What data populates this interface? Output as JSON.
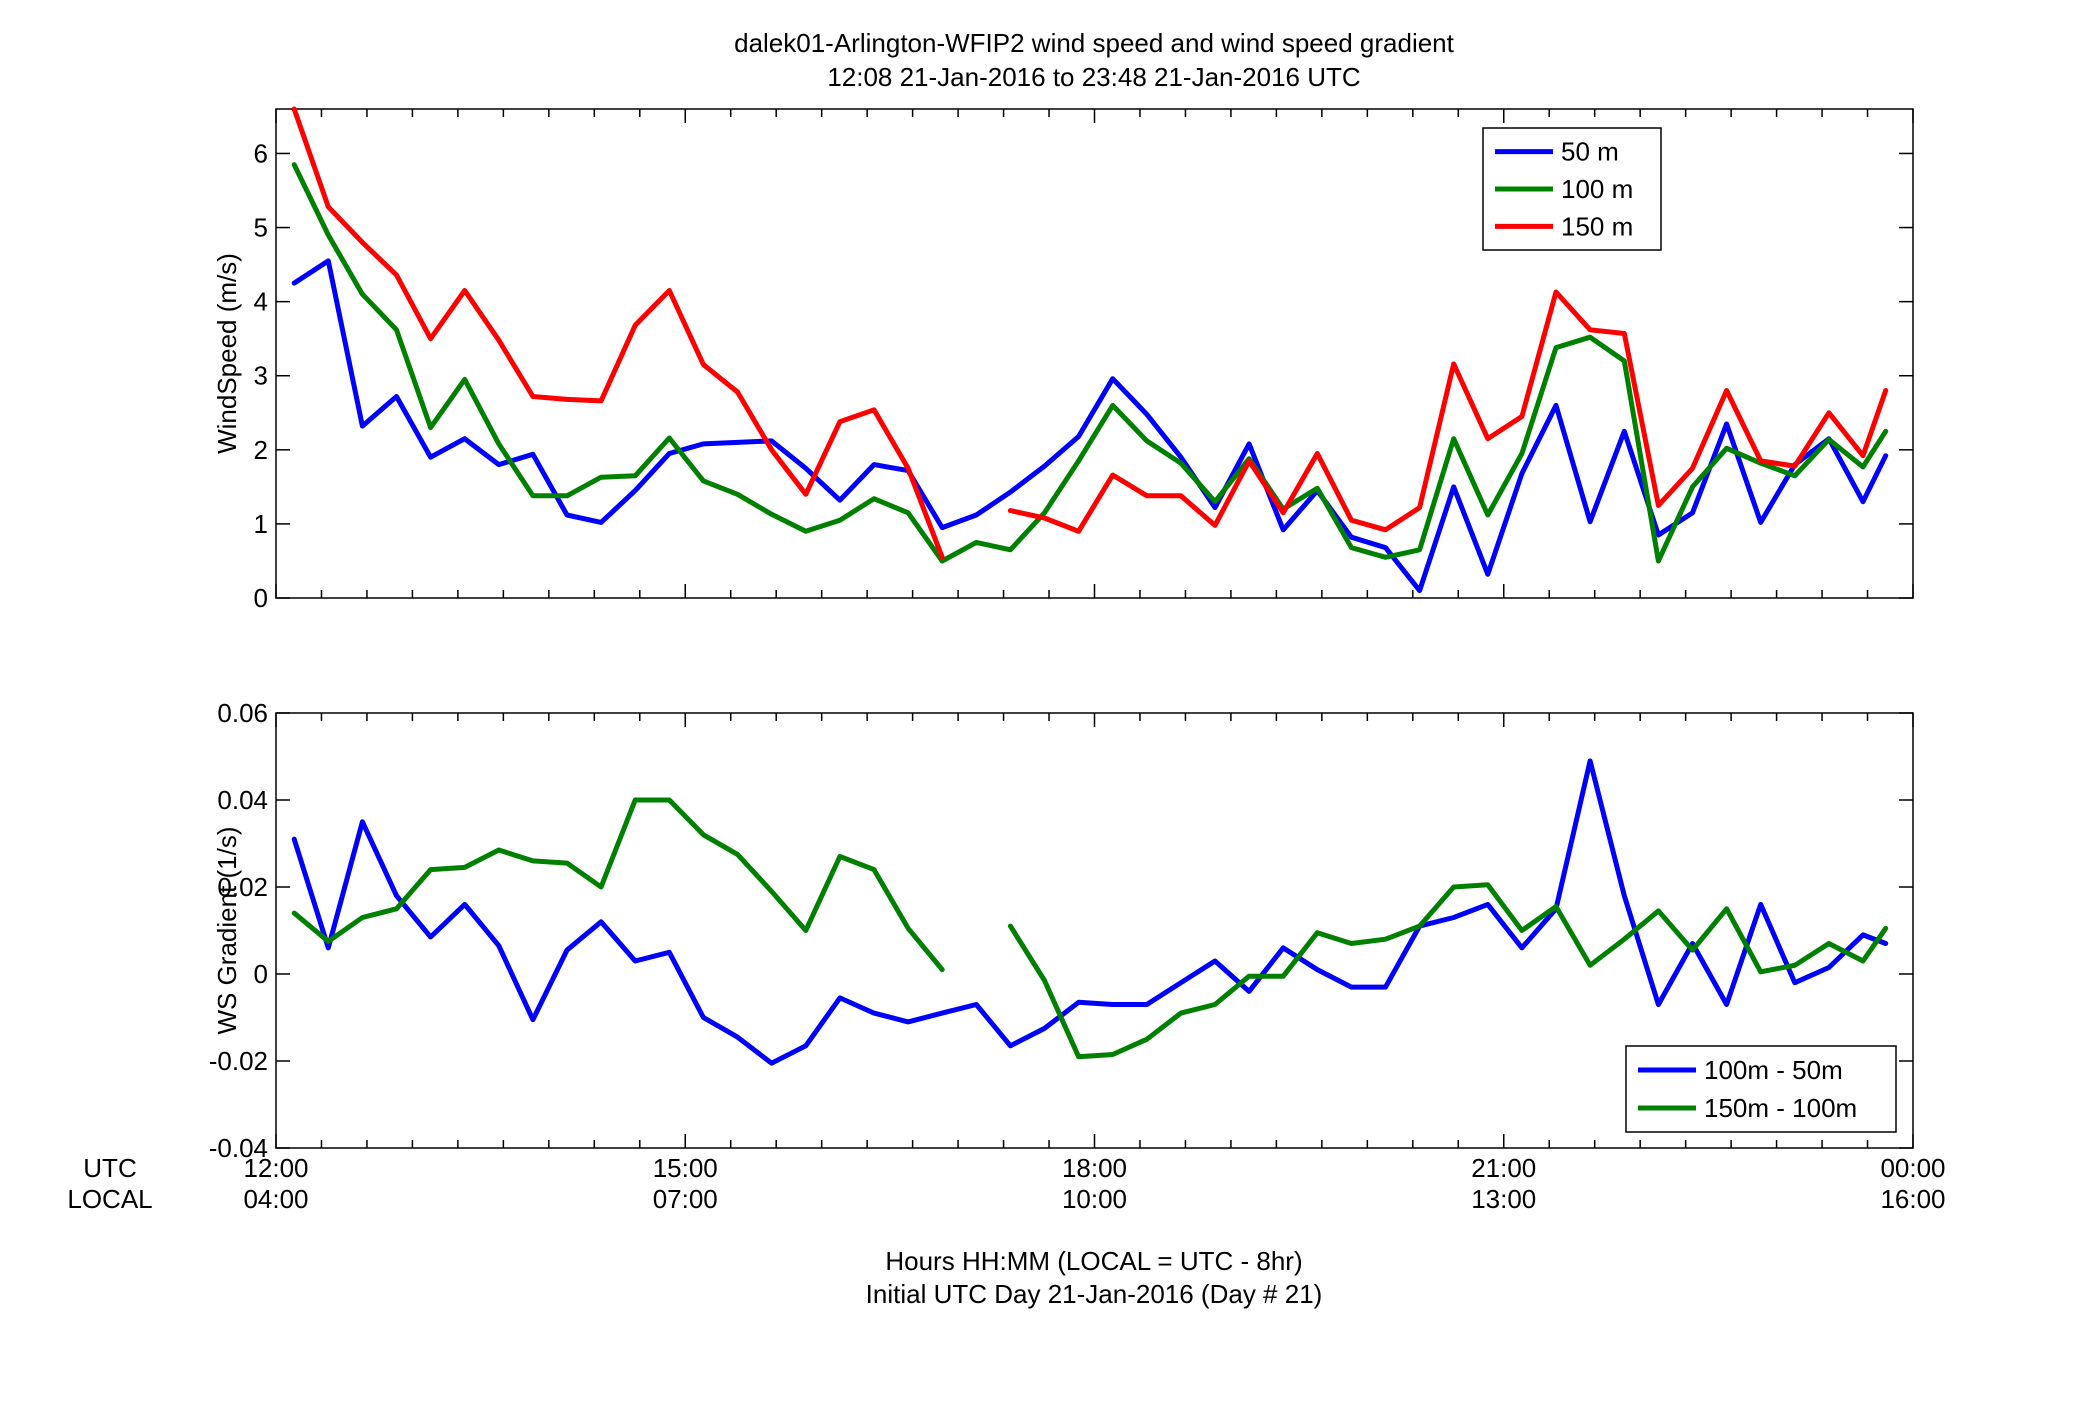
{
  "title": "dalek01-Arlington-WFIP2  wind speed and wind speed gradient",
  "subtitle": "12:08 21-Jan-2016 to 23:48 21-Jan-2016  UTC",
  "colors": {
    "blue": "#0000ff",
    "green": "#008000",
    "red": "#ff0000"
  },
  "axis_labels": {
    "utc": "UTC",
    "local": "LOCAL",
    "xlabel_line1": "Hours HH:MM  (LOCAL = UTC - 8hr)",
    "xlabel_line2": "Initial UTC Day 21-Jan-2016 (Day # 21)"
  },
  "chart_data": [
    {
      "type": "line",
      "ylabel": "WindSpeed (m/s)",
      "xlim": [
        12,
        24
      ],
      "ylim": [
        0,
        6.6
      ],
      "yticks": [
        0,
        1,
        2,
        3,
        4,
        5,
        6
      ],
      "ytick_labels": [
        "0",
        "1",
        "2",
        "3",
        "4",
        "5",
        "6"
      ],
      "x_ticks": [
        12,
        15,
        18,
        21,
        24
      ],
      "utc_tick_labels": [
        "12:00",
        "15:00",
        "18:00",
        "21:00",
        "00:00"
      ],
      "local_tick_labels": [
        "04:00",
        "07:00",
        "10:00",
        "13:00",
        "16:00"
      ],
      "legend": "top-right",
      "x": [
        "12:08",
        "12:23",
        "12:38",
        "12:53",
        "13:08",
        "13:23",
        "13:38",
        "13:53",
        "14:08",
        "14:23",
        "14:38",
        "14:53",
        "15:08",
        "15:23",
        "15:38",
        "15:53",
        "16:08",
        "16:23",
        "16:38",
        "16:53",
        "17:08",
        "17:23",
        "17:38",
        "17:53",
        "18:08",
        "18:23",
        "18:38",
        "18:53",
        "19:08",
        "19:23",
        "19:38",
        "19:53",
        "20:08",
        "20:23",
        "20:38",
        "20:53",
        "21:08",
        "21:23",
        "21:38",
        "21:53",
        "22:08",
        "22:23",
        "22:38",
        "22:53",
        "23:08",
        "23:23",
        "23:38",
        "23:48"
      ],
      "series": [
        {
          "name": "50 m",
          "color": "#0000ff",
          "values": [
            4.25,
            4.55,
            2.32,
            2.72,
            1.9,
            2.15,
            1.8,
            1.94,
            1.12,
            1.02,
            1.45,
            1.95,
            2.08,
            2.1,
            2.12,
            1.75,
            1.32,
            1.8,
            1.72,
            0.95,
            1.12,
            1.43,
            1.78,
            2.18,
            2.96,
            2.48,
            1.9,
            1.22,
            2.08,
            0.92,
            1.45,
            0.82,
            0.68,
            0.1,
            1.5,
            0.32,
            1.68,
            2.6,
            1.03,
            2.25,
            0.85,
            1.15,
            2.35,
            1.02,
            1.8,
            2.15,
            1.3,
            1.92
          ]
        },
        {
          "name": "100 m",
          "color": "#008000",
          "values": [
            5.85,
            4.9,
            4.1,
            3.62,
            2.3,
            2.95,
            2.08,
            1.38,
            1.38,
            1.63,
            1.65,
            2.16,
            1.58,
            1.4,
            1.13,
            0.9,
            1.05,
            1.34,
            1.15,
            0.5,
            0.75,
            0.65,
            1.15,
            1.85,
            2.6,
            2.12,
            1.82,
            1.3,
            1.88,
            1.2,
            1.48,
            0.68,
            0.55,
            0.65,
            2.15,
            1.12,
            1.95,
            3.38,
            3.52,
            3.2,
            0.5,
            1.5,
            2.02,
            1.82,
            1.65,
            2.14,
            1.77,
            2.25
          ]
        },
        {
          "name": "150 m",
          "color": "#ff0000",
          "values": [
            6.6,
            5.28,
            4.8,
            4.36,
            3.5,
            4.15,
            3.48,
            2.72,
            2.68,
            2.66,
            3.68,
            4.15,
            3.15,
            2.78,
            2.0,
            1.4,
            2.38,
            2.54,
            1.75,
            0.55,
            null,
            1.18,
            1.08,
            0.9,
            1.66,
            1.38,
            1.38,
            0.98,
            1.85,
            1.15,
            1.95,
            1.05,
            0.92,
            1.22,
            3.16,
            2.15,
            2.45,
            4.13,
            3.62,
            3.57,
            1.25,
            1.75,
            2.8,
            1.85,
            1.78,
            2.5,
            1.92,
            2.8
          ]
        }
      ]
    },
    {
      "type": "line",
      "ylabel": "WS Gradient (1/s)",
      "xlim": [
        12,
        24
      ],
      "ylim": [
        -0.04,
        0.06
      ],
      "yticks": [
        -0.04,
        -0.02,
        0,
        0.02,
        0.04,
        0.06
      ],
      "ytick_labels": [
        "-0.04",
        "-0.02",
        "0",
        "0.02",
        "0.04",
        "0.06"
      ],
      "legend": "bottom-right",
      "x": [
        "12:08",
        "12:23",
        "12:38",
        "12:53",
        "13:08",
        "13:23",
        "13:38",
        "13:53",
        "14:08",
        "14:23",
        "14:38",
        "14:53",
        "15:08",
        "15:23",
        "15:38",
        "15:53",
        "16:08",
        "16:23",
        "16:38",
        "16:53",
        "17:08",
        "17:23",
        "17:38",
        "17:53",
        "18:08",
        "18:23",
        "18:38",
        "18:53",
        "19:08",
        "19:23",
        "19:38",
        "19:53",
        "20:08",
        "20:23",
        "20:38",
        "20:53",
        "21:08",
        "21:23",
        "21:38",
        "21:53",
        "22:08",
        "22:23",
        "22:38",
        "22:53",
        "23:08",
        "23:23",
        "23:38",
        "23:48"
      ],
      "series": [
        {
          "name": "100m - 50m",
          "color": "#0000ff",
          "values": [
            0.031,
            0.006,
            0.035,
            0.018,
            0.0085,
            0.016,
            0.0065,
            -0.0105,
            0.0055,
            0.012,
            0.003,
            0.005,
            -0.01,
            -0.0145,
            -0.0205,
            -0.0165,
            -0.0055,
            -0.009,
            -0.011,
            -0.009,
            -0.007,
            -0.0165,
            -0.0125,
            -0.0065,
            -0.007,
            -0.007,
            -0.002,
            0.003,
            -0.004,
            0.006,
            0.001,
            -0.003,
            -0.003,
            0.011,
            0.013,
            0.016,
            0.006,
            0.015,
            0.049,
            0.018,
            -0.007,
            0.007,
            -0.007,
            0.016,
            -0.002,
            0.0015,
            0.009,
            0.007
          ]
        },
        {
          "name": "150m - 100m",
          "color": "#008000",
          "values": [
            0.014,
            0.0075,
            0.013,
            0.015,
            0.024,
            0.0245,
            0.0285,
            0.026,
            0.0255,
            0.02,
            0.04,
            0.04,
            0.032,
            0.0275,
            0.019,
            0.01,
            0.027,
            0.024,
            0.0105,
            0.001,
            null,
            0.011,
            -0.0015,
            -0.019,
            -0.0185,
            -0.015,
            -0.009,
            -0.007,
            -0.0005,
            -0.0005,
            0.0095,
            0.007,
            0.008,
            0.011,
            0.02,
            0.0205,
            0.01,
            0.0155,
            0.002,
            0.008,
            0.0145,
            0.0055,
            0.015,
            0.0005,
            0.002,
            0.007,
            0.003,
            0.0105
          ]
        }
      ]
    }
  ]
}
